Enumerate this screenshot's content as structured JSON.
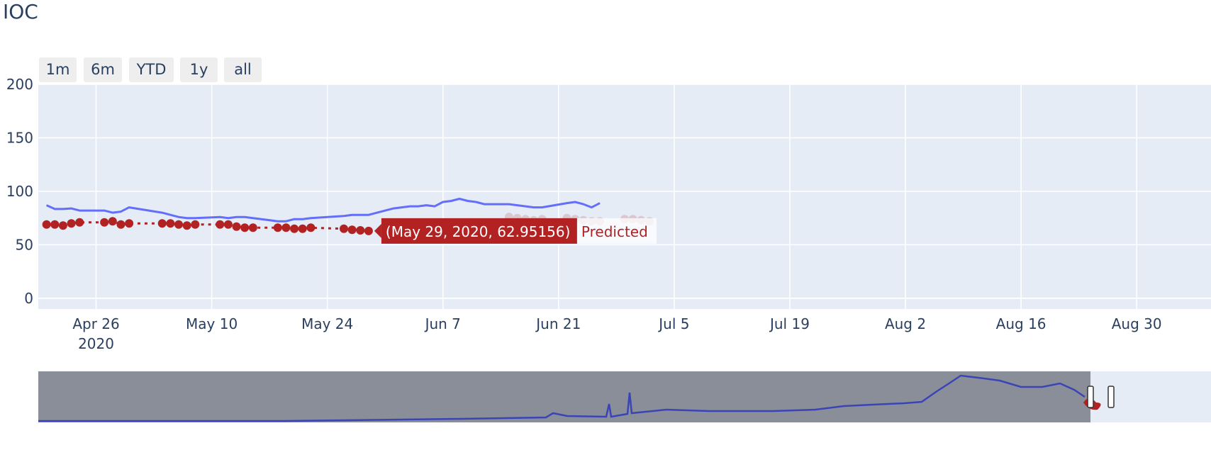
{
  "title": "IOC",
  "range_buttons": [
    "1m",
    "6m",
    "YTD",
    "1y",
    "all"
  ],
  "colors": {
    "actual": "#636efa",
    "predicted": "#b22222",
    "plot_bg": "#e5ecf6",
    "navigator_line": "#3a44b6",
    "navigator_mask": "#8a8e98"
  },
  "hover": {
    "text": "(May 29, 2020, 62.95156)",
    "series": "Predicted"
  },
  "chart_data": {
    "type": "line",
    "title": "IOC",
    "xlabel": "",
    "ylabel": "",
    "x_range": [
      "2020-04-19",
      "2020-09-08"
    ],
    "ylim": [
      -10,
      200
    ],
    "y_ticks": [
      0,
      50,
      100,
      150,
      200
    ],
    "x_ticks": [
      {
        "date": "2020-04-26",
        "label": "Apr 26",
        "sub": "2020"
      },
      {
        "date": "2020-05-10",
        "label": "May 10",
        "sub": ""
      },
      {
        "date": "2020-05-24",
        "label": "May 24",
        "sub": ""
      },
      {
        "date": "2020-06-07",
        "label": "Jun 7",
        "sub": ""
      },
      {
        "date": "2020-06-21",
        "label": "Jun 21",
        "sub": ""
      },
      {
        "date": "2020-07-05",
        "label": "Jul 5",
        "sub": ""
      },
      {
        "date": "2020-07-19",
        "label": "Jul 19",
        "sub": ""
      },
      {
        "date": "2020-08-02",
        "label": "Aug 2",
        "sub": ""
      },
      {
        "date": "2020-08-16",
        "label": "Aug 16",
        "sub": ""
      },
      {
        "date": "2020-08-30",
        "label": "Aug 30",
        "sub": ""
      }
    ],
    "grid": true,
    "series": [
      {
        "name": "",
        "mode": "lines",
        "points": [
          [
            "2020-04-20",
            87
          ],
          [
            "2020-04-21",
            83.5
          ],
          [
            "2020-04-22",
            83.5
          ],
          [
            "2020-04-23",
            84
          ],
          [
            "2020-04-24",
            82
          ],
          [
            "2020-04-27",
            82
          ],
          [
            "2020-04-28",
            80
          ],
          [
            "2020-04-29",
            81
          ],
          [
            "2020-04-30",
            85
          ],
          [
            "2020-05-04",
            80
          ],
          [
            "2020-05-05",
            78
          ],
          [
            "2020-05-06",
            76
          ],
          [
            "2020-05-07",
            75
          ],
          [
            "2020-05-08",
            75
          ],
          [
            "2020-05-11",
            76
          ],
          [
            "2020-05-12",
            75
          ],
          [
            "2020-05-13",
            76
          ],
          [
            "2020-05-14",
            76
          ],
          [
            "2020-05-15",
            75
          ],
          [
            "2020-05-18",
            72
          ],
          [
            "2020-05-19",
            72
          ],
          [
            "2020-05-20",
            74
          ],
          [
            "2020-05-21",
            74
          ],
          [
            "2020-05-22",
            75
          ],
          [
            "2020-05-26",
            77
          ],
          [
            "2020-05-27",
            78
          ],
          [
            "2020-05-28",
            78
          ],
          [
            "2020-05-29",
            78
          ],
          [
            "2020-06-01",
            84
          ],
          [
            "2020-06-02",
            85
          ],
          [
            "2020-06-03",
            86
          ],
          [
            "2020-06-04",
            86
          ],
          [
            "2020-06-05",
            87
          ],
          [
            "2020-06-06",
            86
          ],
          [
            "2020-06-07",
            90
          ],
          [
            "2020-06-08",
            91
          ],
          [
            "2020-06-09",
            93
          ],
          [
            "2020-06-10",
            91
          ],
          [
            "2020-06-11",
            90
          ],
          [
            "2020-06-12",
            88
          ],
          [
            "2020-06-15",
            88
          ],
          [
            "2020-06-16",
            87
          ],
          [
            "2020-06-17",
            86
          ],
          [
            "2020-06-18",
            85
          ],
          [
            "2020-06-19",
            85
          ],
          [
            "2020-06-22",
            89
          ],
          [
            "2020-06-23",
            90
          ],
          [
            "2020-06-24",
            88
          ],
          [
            "2020-06-25",
            85
          ],
          [
            "2020-06-26",
            89
          ]
        ]
      },
      {
        "name": "Predicted",
        "mode": "lines+markers",
        "points": [
          [
            "2020-04-20",
            69
          ],
          [
            "2020-04-21",
            69
          ],
          [
            "2020-04-22",
            68
          ],
          [
            "2020-04-23",
            70
          ],
          [
            "2020-04-24",
            71
          ],
          [
            "2020-04-27",
            71
          ],
          [
            "2020-04-28",
            72
          ],
          [
            "2020-04-29",
            69
          ],
          [
            "2020-04-30",
            70
          ],
          [
            "2020-05-04",
            70
          ],
          [
            "2020-05-05",
            70
          ],
          [
            "2020-05-06",
            69
          ],
          [
            "2020-05-07",
            68
          ],
          [
            "2020-05-08",
            69
          ],
          [
            "2020-05-11",
            69
          ],
          [
            "2020-05-12",
            69
          ],
          [
            "2020-05-13",
            67
          ],
          [
            "2020-05-14",
            66
          ],
          [
            "2020-05-15",
            66
          ],
          [
            "2020-05-18",
            66
          ],
          [
            "2020-05-19",
            66
          ],
          [
            "2020-05-20",
            65
          ],
          [
            "2020-05-21",
            65
          ],
          [
            "2020-05-22",
            66
          ],
          [
            "2020-05-26",
            65
          ],
          [
            "2020-05-27",
            64
          ],
          [
            "2020-05-28",
            63.5
          ],
          [
            "2020-05-29",
            62.95156
          ],
          [
            "2020-06-15",
            76
          ],
          [
            "2020-06-16",
            75
          ],
          [
            "2020-06-17",
            74
          ],
          [
            "2020-06-18",
            73
          ],
          [
            "2020-06-19",
            74
          ],
          [
            "2020-06-22",
            75
          ],
          [
            "2020-06-23",
            74
          ],
          [
            "2020-06-24",
            73
          ],
          [
            "2020-06-25",
            72
          ],
          [
            "2020-06-26",
            72
          ],
          [
            "2020-06-29",
            74
          ],
          [
            "2020-06-30",
            74
          ],
          [
            "2020-07-01",
            73
          ],
          [
            "2020-07-02",
            72
          ]
        ]
      }
    ]
  }
}
